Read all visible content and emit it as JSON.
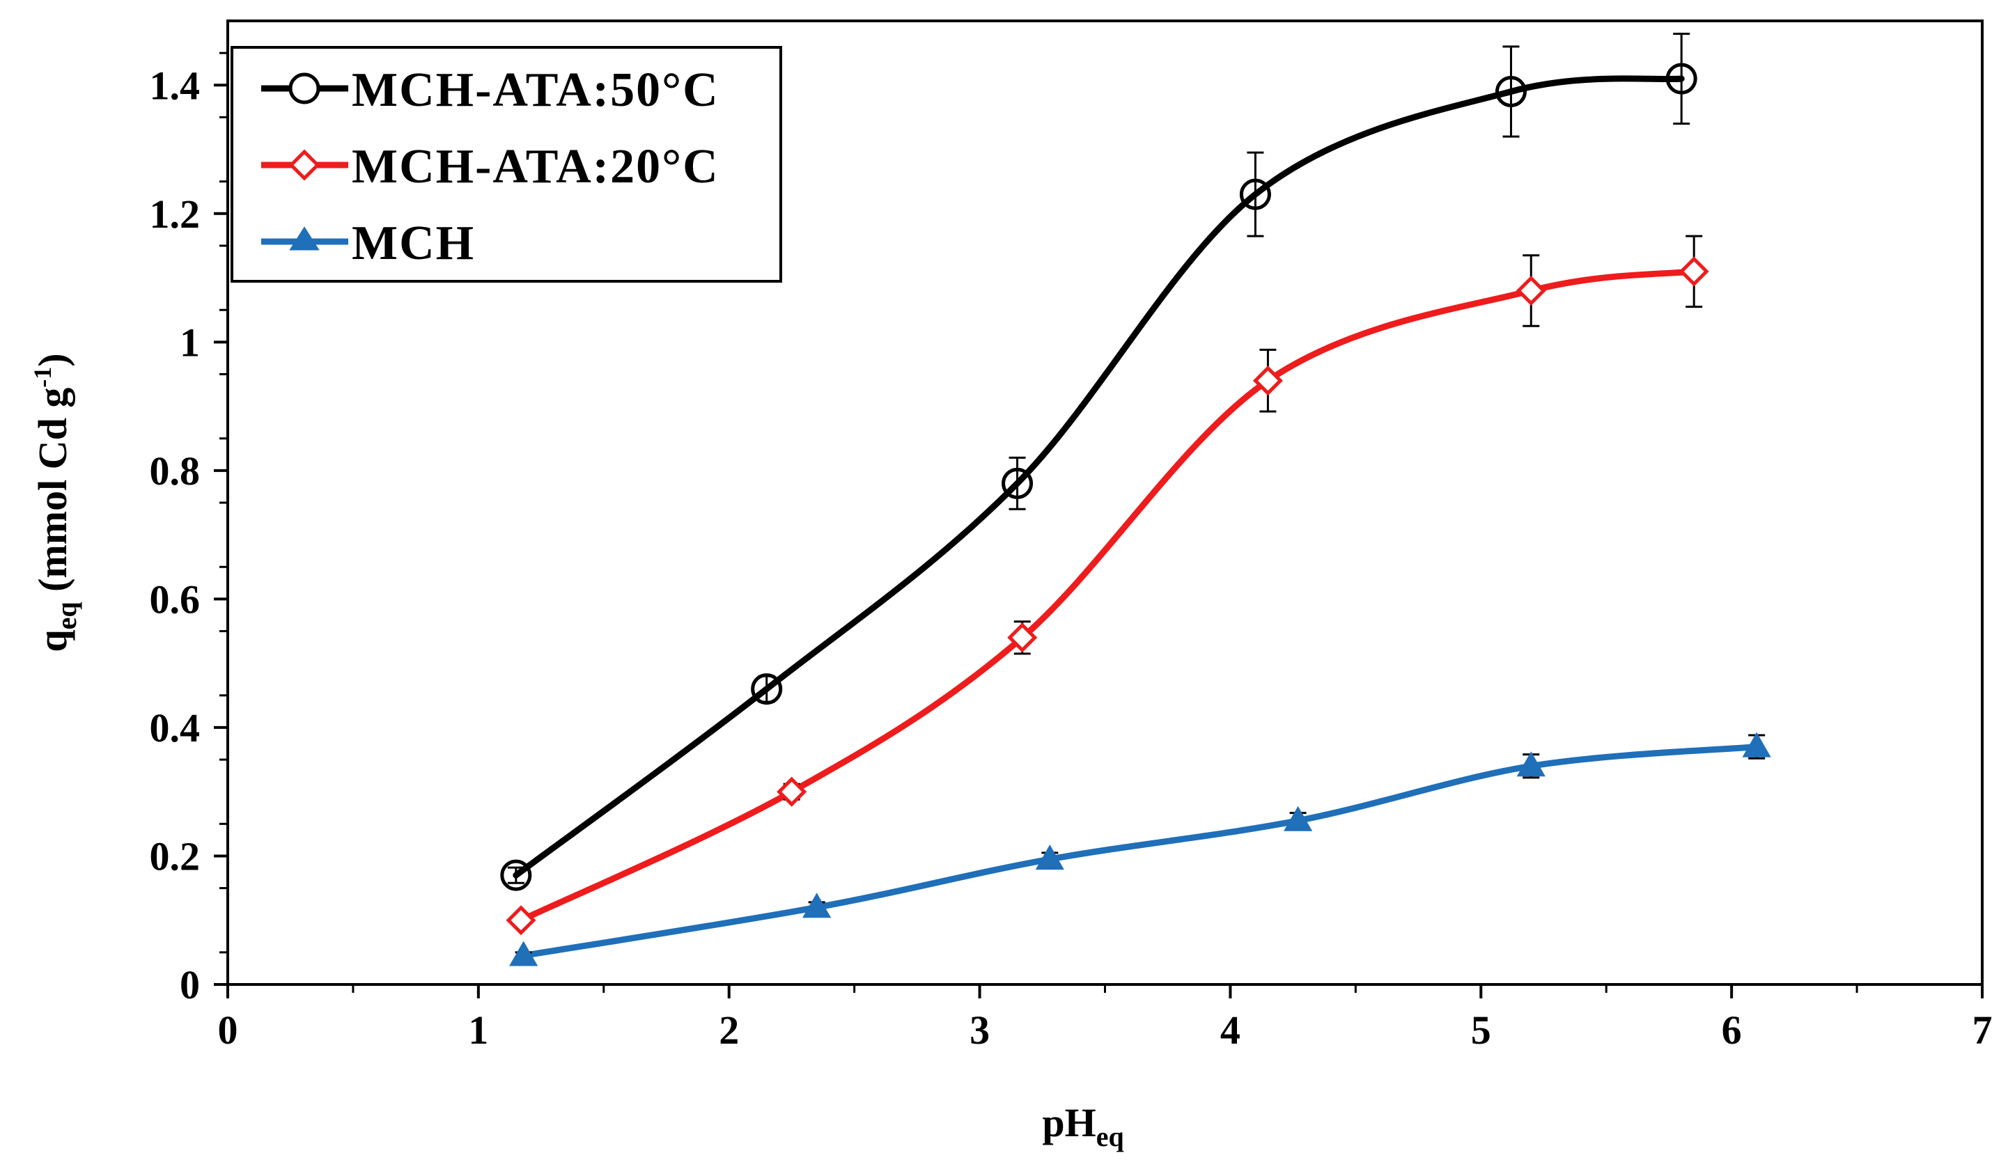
{
  "chart_data": {
    "type": "line",
    "title": "",
    "xlabel": {
      "main": "pH",
      "sub": "eq"
    },
    "ylabel": {
      "main": "q",
      "sub": "eq",
      "rest": " (mmol Cd g",
      "sup": "-1",
      "end": ")"
    },
    "xlim": [
      0,
      7
    ],
    "ylim": [
      0,
      1.5
    ],
    "x_ticks": [
      "0",
      "1",
      "2",
      "3",
      "4",
      "5",
      "6",
      "7"
    ],
    "y_ticks": [
      "0",
      "0.2",
      "0.4",
      "0.6",
      "0.8",
      "1",
      "1.2",
      "1.4"
    ],
    "grid": false,
    "legend_position": "top-left",
    "series": [
      {
        "name": "MCH-ATA:50°C",
        "color": "#000000",
        "marker": "circle",
        "x": [
          1.15,
          2.15,
          3.15,
          4.1,
          5.12,
          5.8
        ],
        "y": [
          0.17,
          0.46,
          0.78,
          1.23,
          1.39,
          1.41
        ],
        "error": [
          0.012,
          0.02,
          0.04,
          0.065,
          0.07,
          0.07
        ]
      },
      {
        "name": "MCH-ATA:20°C",
        "color": "#ee1c1c",
        "marker": "diamond",
        "x": [
          1.17,
          2.25,
          3.17,
          4.15,
          5.2,
          5.85
        ],
        "y": [
          0.1,
          0.3,
          0.54,
          0.94,
          1.08,
          1.11
        ],
        "error": [
          0.008,
          0.012,
          0.025,
          0.048,
          0.055,
          0.055
        ]
      },
      {
        "name": "MCH",
        "color": "#1f6fb9",
        "marker": "triangle",
        "x": [
          1.18,
          2.35,
          3.28,
          4.27,
          5.2,
          6.1
        ],
        "y": [
          0.045,
          0.12,
          0.195,
          0.255,
          0.34,
          0.37
        ],
        "error": [
          0.005,
          0.008,
          0.01,
          0.012,
          0.018,
          0.018
        ]
      }
    ]
  }
}
